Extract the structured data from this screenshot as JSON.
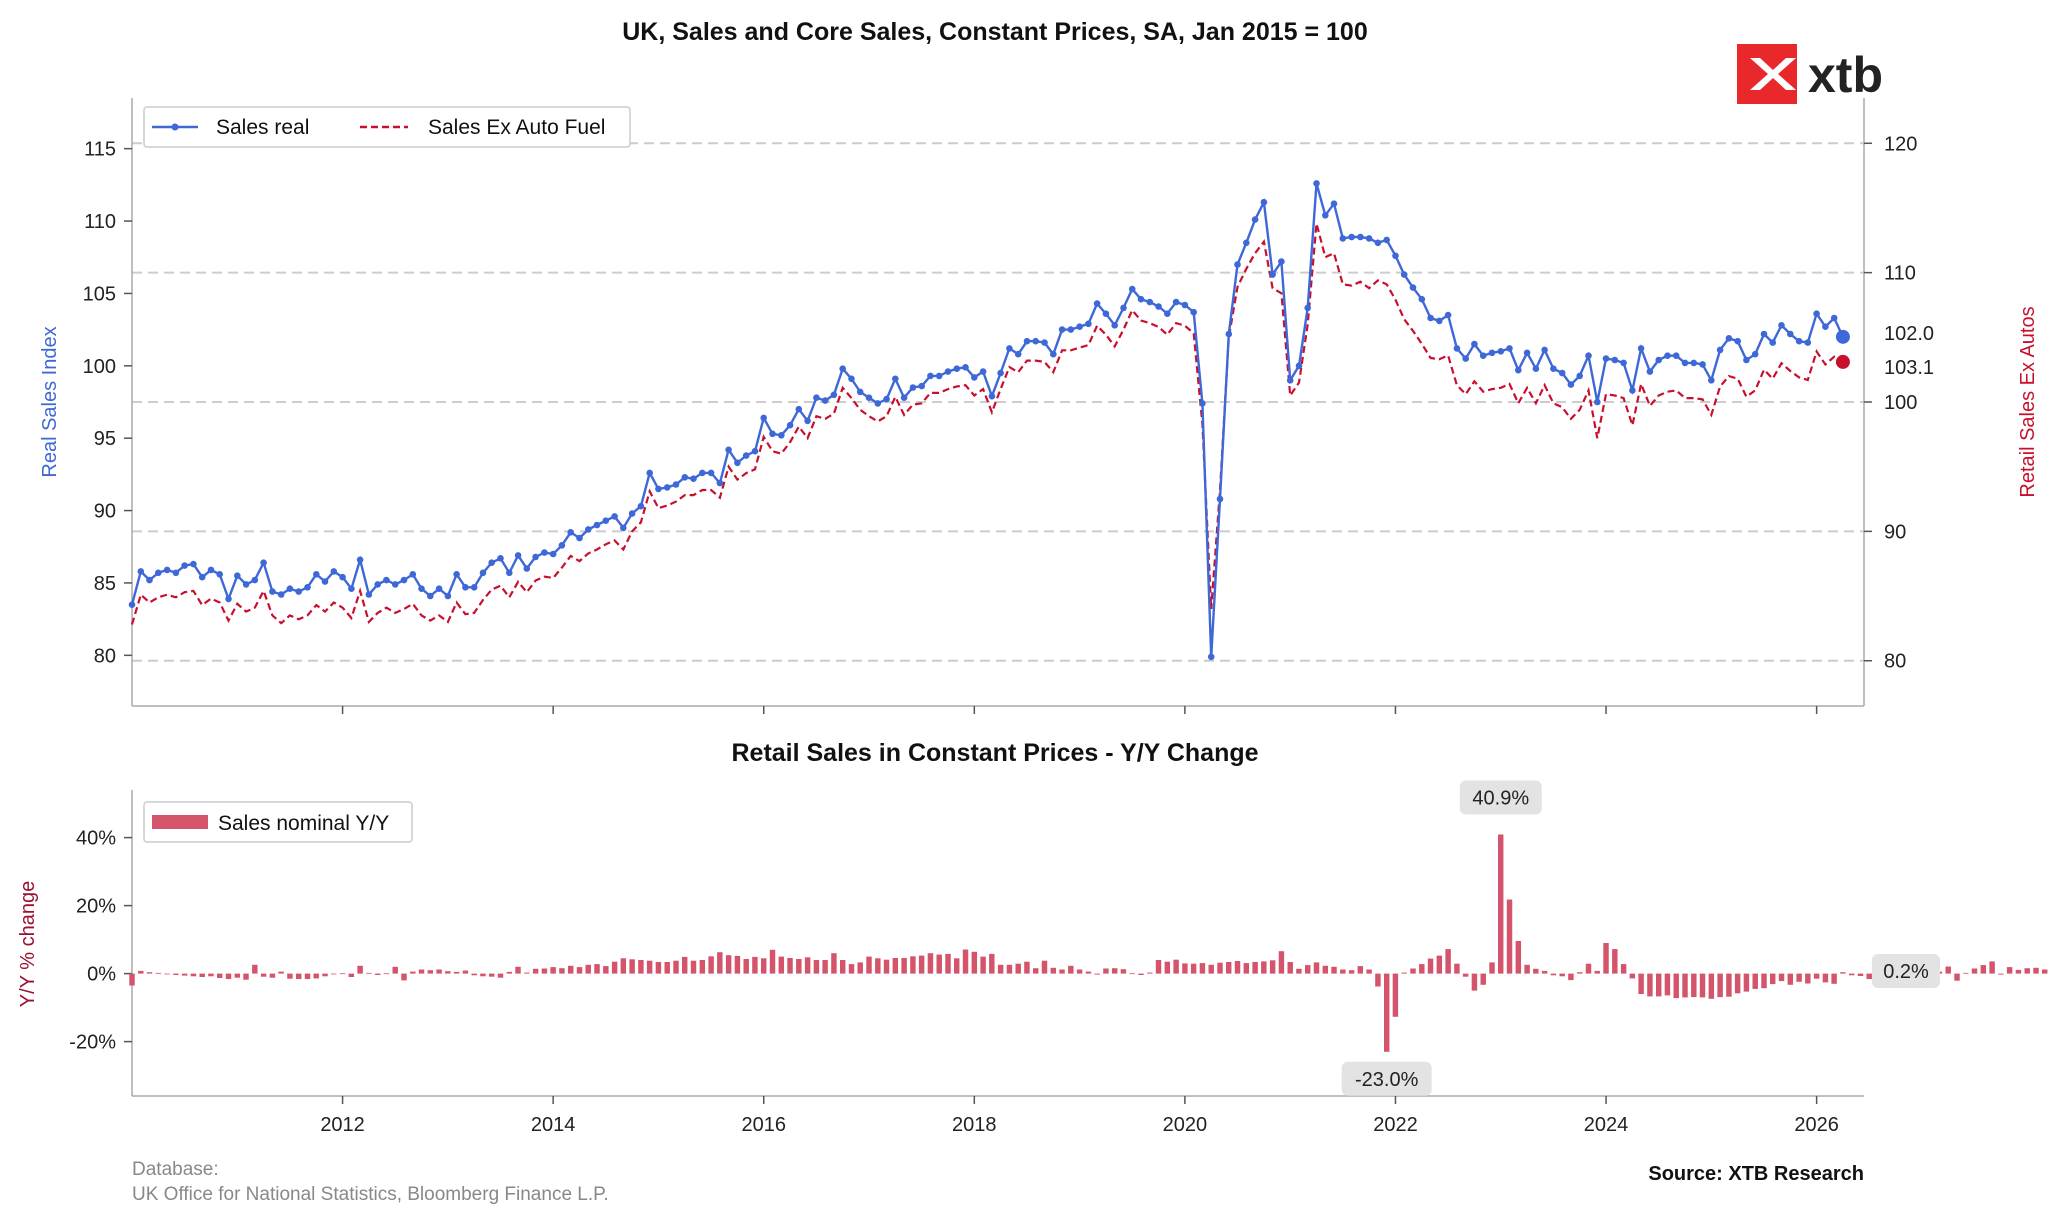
{
  "brand": {
    "logo_text": "xtb",
    "logo_color": "#e8282b"
  },
  "footer": {
    "database_label": "Database:",
    "database_sources": "UK Office for National Statistics, Bloomberg Finance L.P.",
    "source": "Source: XTB Research"
  },
  "colors": {
    "sales_real": "#3e68d8",
    "sales_ex_fuel": "#c8102e",
    "yoy_bar": "#d4546c",
    "yoy_label": "#9b1030"
  },
  "chart_data": [
    {
      "type": "line",
      "title": "UK, Sales and Core Sales, Constant Prices, SA, Jan 2015 = 100",
      "ylabel": "Real Sales Index",
      "y2label": "Retail Sales Ex Autos",
      "ylim": [
        76.5,
        118.5
      ],
      "y2lim": [
        76.5,
        123.5
      ],
      "xlim": [
        2010.0,
        2026.45
      ],
      "yticks": [
        80,
        85,
        90,
        95,
        100,
        105,
        110,
        115
      ],
      "y2ticks": [
        80,
        90,
        100,
        110,
        120
      ],
      "grid": "dashed horizontal (right axis)",
      "legend_position": "top-left",
      "start": "2010-01",
      "series": [
        {
          "name": "Sales real",
          "axis": "left",
          "values": [
            83.5,
            85.8,
            85.2,
            85.7,
            85.9,
            85.7,
            86.2,
            86.3,
            85.4,
            85.9,
            85.6,
            83.9,
            85.5,
            84.9,
            85.2,
            86.4,
            84.4,
            84.2,
            84.6,
            84.4,
            84.7,
            85.6,
            85.1,
            85.8,
            85.4,
            84.6,
            86.6,
            84.2,
            84.9,
            85.2,
            84.9,
            85.2,
            85.6,
            84.6,
            84.1,
            84.6,
            84.1,
            85.6,
            84.7,
            84.7,
            85.7,
            86.4,
            86.7,
            85.7,
            86.9,
            86.0,
            86.8,
            87.1,
            87.0,
            87.6,
            88.5,
            88.1,
            88.7,
            89.0,
            89.3,
            89.6,
            88.8,
            89.8,
            90.3,
            92.6,
            91.5,
            91.6,
            91.8,
            92.3,
            92.2,
            92.6,
            92.6,
            91.9,
            94.2,
            93.3,
            93.8,
            94.1,
            96.4,
            95.3,
            95.2,
            95.9,
            97.0,
            96.2,
            97.8,
            97.6,
            98.0,
            99.8,
            99.1,
            98.2,
            97.8,
            97.4,
            97.7,
            99.1,
            97.8,
            98.5,
            98.6,
            99.3,
            99.3,
            99.6,
            99.8,
            99.9,
            99.2,
            99.6,
            97.9,
            99.5,
            101.2,
            100.8,
            101.7,
            101.7,
            101.6,
            100.8,
            102.5,
            102.5,
            102.7,
            102.9,
            104.3,
            103.6,
            102.8,
            104.0,
            105.3,
            104.6,
            104.4,
            104.1,
            103.6,
            104.4,
            104.2,
            103.7,
            97.4,
            79.9,
            90.8,
            102.2,
            107.0,
            108.5,
            110.1,
            111.3,
            106.3,
            107.2,
            99.0,
            100.0,
            104.0,
            112.6,
            110.4,
            111.2,
            108.8,
            108.9,
            108.9,
            108.8,
            108.5,
            108.7,
            107.6,
            106.3,
            105.4,
            104.6,
            103.3,
            103.1,
            103.5,
            101.2,
            100.5,
            101.5,
            100.7,
            100.9,
            101.0,
            101.2,
            99.7,
            100.9,
            99.8,
            101.1,
            99.8,
            99.5,
            98.7,
            99.3,
            100.7,
            97.5,
            100.5,
            100.4,
            100.2,
            98.3,
            101.2,
            99.6,
            100.4,
            100.7,
            100.7,
            100.2,
            100.2,
            100.1,
            99.0,
            101.1,
            101.9,
            101.7,
            100.4,
            100.8,
            102.2,
            101.6,
            102.8,
            102.2,
            101.7,
            101.6,
            103.6,
            102.7,
            103.3,
            102.0
          ]
        },
        {
          "name": "Sales Ex Auto Fuel",
          "axis": "right",
          "values": [
            82.8,
            85.1,
            84.5,
            84.9,
            85.1,
            84.9,
            85.3,
            85.4,
            84.3,
            84.8,
            84.5,
            83.1,
            84.4,
            83.8,
            84.1,
            85.4,
            83.5,
            82.9,
            83.5,
            83.2,
            83.5,
            84.3,
            83.8,
            84.5,
            84.1,
            83.3,
            85.4,
            83.0,
            83.7,
            84.1,
            83.7,
            84.0,
            84.4,
            83.5,
            83.1,
            83.5,
            83.0,
            84.5,
            83.6,
            83.7,
            84.7,
            85.5,
            85.8,
            84.9,
            86.1,
            85.3,
            86.2,
            86.5,
            86.4,
            87.2,
            88.1,
            87.7,
            88.3,
            88.6,
            89.0,
            89.3,
            88.6,
            90.0,
            90.7,
            93.1,
            91.8,
            92.0,
            92.3,
            92.8,
            92.8,
            93.2,
            93.2,
            92.6,
            95.0,
            94.0,
            94.5,
            94.8,
            97.3,
            96.2,
            96.0,
            96.9,
            98.1,
            97.2,
            98.9,
            98.7,
            99.1,
            101.1,
            100.3,
            99.4,
            98.9,
            98.5,
            98.9,
            100.4,
            99.0,
            99.8,
            99.9,
            100.7,
            100.7,
            101.0,
            101.2,
            101.3,
            100.5,
            101.0,
            99.2,
            101.0,
            102.7,
            102.3,
            103.2,
            103.2,
            103.1,
            102.3,
            104.0,
            104.0,
            104.2,
            104.4,
            105.9,
            105.2,
            104.3,
            105.6,
            107.1,
            106.3,
            106.1,
            105.8,
            105.2,
            106.1,
            105.9,
            105.3,
            98.3,
            84.0,
            93.2,
            105.0,
            108.9,
            110.3,
            111.5,
            112.4,
            108.8,
            108.4,
            100.5,
            101.5,
            106.0,
            113.8,
            111.2,
            111.5,
            109.1,
            109.0,
            109.3,
            108.8,
            109.4,
            109.1,
            107.9,
            106.4,
            105.5,
            104.5,
            103.4,
            103.3,
            103.6,
            101.3,
            100.6,
            101.6,
            100.8,
            101.0,
            101.1,
            101.4,
            99.9,
            101.1,
            99.9,
            101.3,
            99.9,
            99.6,
            98.7,
            99.4,
            100.9,
            97.2,
            100.6,
            100.5,
            100.3,
            98.2,
            101.4,
            99.7,
            100.5,
            100.8,
            100.9,
            100.3,
            100.3,
            100.2,
            99.0,
            101.2,
            102.0,
            101.8,
            100.4,
            100.9,
            102.5,
            101.8,
            103.0,
            102.4,
            101.9,
            101.7,
            103.9,
            102.9,
            103.5,
            103.1
          ]
        }
      ],
      "last_labels": {
        "sales_real": "102.0",
        "sales_ex_fuel": "103.1"
      }
    },
    {
      "type": "bar",
      "title": "Retail Sales in Constant Prices - Y/Y Change",
      "ylabel": "Y/Y % change",
      "ylim": [
        -36,
        54
      ],
      "yticks": [
        -20,
        0,
        20,
        40
      ],
      "ytick_labels": [
        "-20%",
        "0%",
        "20%",
        "40%"
      ],
      "xticks": [
        "2012",
        "2014",
        "2016",
        "2018",
        "2020",
        "2022",
        "2024",
        "2026"
      ],
      "legend_position": "top-left",
      "start": "2010-01",
      "series": [
        {
          "name": "Sales nominal Y/Y",
          "values": [
            -3.5,
            0.8,
            0.4,
            0.2,
            -0.2,
            -0.4,
            -0.6,
            -0.8,
            -1.0,
            -0.8,
            -1.3,
            -1.6,
            -1.2,
            -1.8,
            2.6,
            -0.9,
            -1.2,
            0.6,
            -1.5,
            -1.6,
            -1.6,
            -1.4,
            -0.8,
            -0.2,
            0.1,
            -1.0,
            2.3,
            0.2,
            -0.4,
            0.1,
            2.0,
            -2.0,
            0.6,
            1.2,
            1.0,
            1.2,
            0.7,
            0.5,
            0.9,
            -0.5,
            -0.8,
            -0.9,
            -1.2,
            0.5,
            2.0,
            0.3,
            1.4,
            1.5,
            1.9,
            1.6,
            2.3,
            1.9,
            2.6,
            2.8,
            2.2,
            3.5,
            4.5,
            4.2,
            4.0,
            3.8,
            3.4,
            3.4,
            3.8,
            4.9,
            3.8,
            4.0,
            5.1,
            6.3,
            5.4,
            5.2,
            4.3,
            4.9,
            4.5,
            7.0,
            5.0,
            4.6,
            4.3,
            4.8,
            4.0,
            4.0,
            6.0,
            4.0,
            2.8,
            3.3,
            5.0,
            4.5,
            4.1,
            4.6,
            4.6,
            5.1,
            5.3,
            6.0,
            5.6,
            5.8,
            4.5,
            7.1,
            6.4,
            5.0,
            5.8,
            2.6,
            2.6,
            2.9,
            3.5,
            1.6,
            3.8,
            1.7,
            1.2,
            2.3,
            1.2,
            0.6,
            -0.3,
            1.5,
            1.6,
            1.3,
            0.1,
            -0.4,
            0.3,
            4.0,
            3.5,
            4.1,
            3.0,
            2.9,
            3.1,
            2.6,
            3.2,
            3.4,
            3.7,
            3.1,
            3.4,
            3.6,
            3.9,
            6.6,
            3.4,
            1.4,
            2.5,
            3.3,
            2.3,
            2.0,
            1.2,
            1.0,
            2.2,
            1.2,
            -3.8,
            -23.0,
            -12.7,
            0.3,
            1.5,
            2.8,
            4.4,
            5.3,
            7.2,
            2.9,
            -0.9,
            -5.0,
            -3.3,
            3.3,
            40.9,
            21.8,
            9.6,
            2.6,
            1.4,
            0.8,
            -0.5,
            -0.8,
            -1.9,
            0.4,
            2.9,
            0.8,
            9.0,
            7.2,
            2.8,
            -1.4,
            -6.0,
            -6.7,
            -6.7,
            -6.4,
            -7.2,
            -7.0,
            -6.9,
            -7.0,
            -7.4,
            -6.9,
            -6.8,
            -5.8,
            -5.3,
            -4.5,
            -4.3,
            -3.1,
            -2.2,
            -3.3,
            -2.4,
            -2.9,
            -1.5,
            -2.6,
            -3.0,
            0.4,
            -0.5,
            -0.7,
            -1.6,
            -3.3,
            0.7,
            1.3,
            2.1,
            -0.5,
            1.7,
            1.6,
            0.6,
            2.1,
            -2.1,
            0.2,
            1.5,
            2.5,
            3.6,
            -0.3,
            1.9,
            1.1,
            1.6,
            1.7,
            1.2,
            1.7,
            1.3,
            1.8,
            1.5,
            1.7,
            1.3,
            4.6,
            1.6,
            1.7,
            0.9,
            0.2
          ]
        }
      ],
      "annotations": {
        "max_label": "40.9%",
        "min_label": "-23.0%",
        "last_label": "0.2%"
      }
    }
  ]
}
